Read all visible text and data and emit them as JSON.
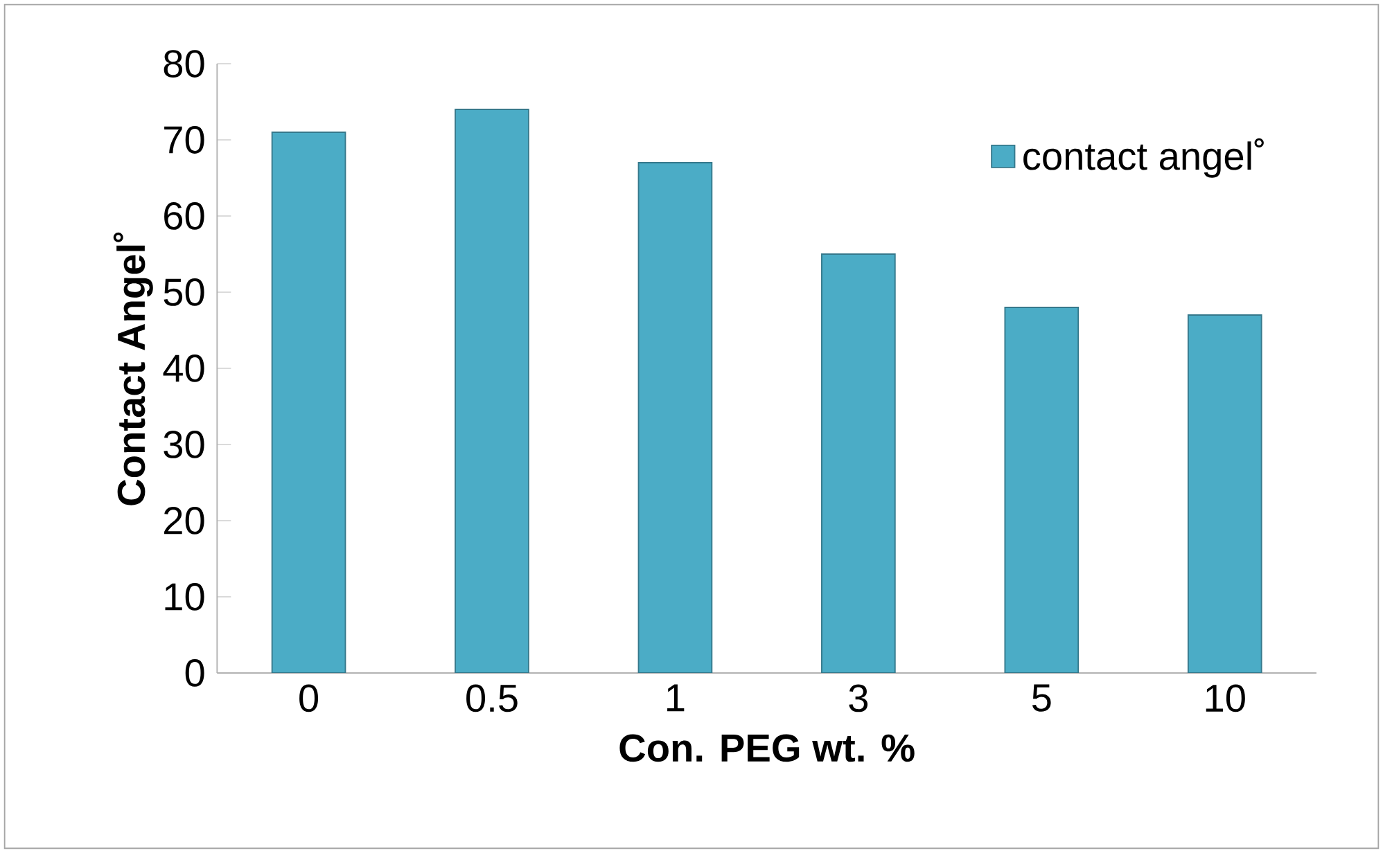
{
  "chart_data": {
    "type": "bar",
    "xlabel": "Con. PEG wt. %",
    "ylabel": "Contact Angel˚",
    "categories": [
      "0",
      "0.5",
      "1",
      "3",
      "5",
      "10"
    ],
    "series": [
      {
        "name": "contact angel˚",
        "color": "#4bacc6",
        "values": [
          71,
          74,
          67,
          55,
          48,
          47
        ]
      }
    ],
    "ylim": [
      0,
      80
    ],
    "yticks": [
      0,
      10,
      20,
      30,
      40,
      50,
      60,
      70,
      80
    ],
    "legend": "top right"
  }
}
